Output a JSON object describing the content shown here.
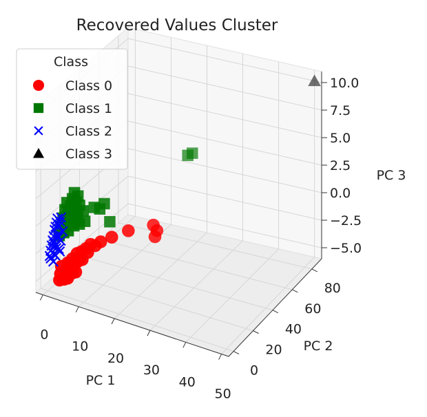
{
  "chart_data": {
    "type": "scatter",
    "projection": "3d",
    "title": "Recovered Values Cluster",
    "xlabel": "PC 1",
    "ylabel": "PC 2",
    "zlabel": "PC 3",
    "xlim": [
      -2,
      52
    ],
    "ylim": [
      -5,
      90
    ],
    "zlim": [
      -6,
      11
    ],
    "xticks": [
      "0",
      "10",
      "20",
      "30",
      "40",
      "50"
    ],
    "yticks": [
      "0",
      "20",
      "40",
      "60",
      "80"
    ],
    "zticks": [
      "−5.0",
      "−2.5",
      "0.0",
      "2.5",
      "5.0",
      "7.5",
      "10.0"
    ],
    "grid": true,
    "legend": {
      "title": "Class",
      "position": "upper-left"
    },
    "series": [
      {
        "name": "Class 0",
        "marker": "circle",
        "color": "#ff0000",
        "points": [
          [
            3,
            1,
            -4.8
          ],
          [
            4,
            1,
            -4.6
          ],
          [
            5,
            2,
            -4.5
          ],
          [
            3,
            2,
            -4.3
          ],
          [
            4,
            3,
            -4.4
          ],
          [
            5,
            1,
            -4.1
          ],
          [
            6,
            2,
            -3.9
          ],
          [
            4,
            4,
            -4.0
          ],
          [
            3,
            3,
            -3.7
          ],
          [
            6,
            4,
            -3.6
          ],
          [
            5,
            5,
            -3.4
          ],
          [
            7,
            3,
            -3.8
          ],
          [
            4,
            6,
            -3.5
          ],
          [
            6,
            6,
            -3.2
          ],
          [
            7,
            5,
            -3.0
          ],
          [
            5,
            7,
            -3.1
          ],
          [
            8,
            6,
            -2.8
          ],
          [
            6,
            8,
            -2.6
          ],
          [
            7,
            9,
            -2.4
          ],
          [
            9,
            8,
            -2.2
          ],
          [
            8,
            10,
            -2.1
          ],
          [
            10,
            12,
            -1.8
          ],
          [
            9,
            11,
            -1.7
          ],
          [
            11,
            14,
            -1.5
          ],
          [
            7,
            7,
            -2.9
          ],
          [
            5,
            3,
            -4.2
          ],
          [
            4,
            2,
            -4.7
          ],
          [
            6,
            3,
            -4.0
          ],
          [
            13,
            18,
            -1.2
          ],
          [
            16,
            24,
            -0.8
          ],
          [
            20,
            35,
            -0.8
          ],
          [
            21,
            35,
            -1.2
          ],
          [
            21,
            33,
            -1.6
          ]
        ]
      },
      {
        "name": "Class 1",
        "marker": "square",
        "color": "#007700",
        "points": [
          [
            1,
            8,
            -1.5
          ],
          [
            2,
            9,
            -1.2
          ],
          [
            1,
            10,
            -0.8
          ],
          [
            2,
            11,
            -0.5
          ],
          [
            1,
            12,
            -0.2
          ],
          [
            2,
            13,
            0.0
          ],
          [
            3,
            10,
            -1.0
          ],
          [
            2,
            14,
            0.3
          ],
          [
            3,
            12,
            -0.3
          ],
          [
            1,
            14,
            0.4
          ],
          [
            3,
            14,
            0.1
          ],
          [
            4,
            12,
            -0.6
          ],
          [
            2,
            16,
            0.7
          ],
          [
            3,
            16,
            0.5
          ],
          [
            1,
            16,
            0.9
          ],
          [
            4,
            14,
            -0.2
          ],
          [
            3,
            18,
            1.0
          ],
          [
            2,
            18,
            1.2
          ],
          [
            4,
            16,
            0.2
          ],
          [
            5,
            14,
            -0.5
          ],
          [
            3,
            20,
            1.4
          ],
          [
            4,
            18,
            0.8
          ],
          [
            2,
            20,
            1.6
          ],
          [
            5,
            18,
            0.4
          ],
          [
            6,
            16,
            -0.3
          ],
          [
            7,
            22,
            0.6
          ],
          [
            8,
            24,
            0.4
          ],
          [
            10,
            27,
            -0.8
          ],
          [
            9,
            25,
            0.9
          ],
          [
            22,
            63,
            3.4
          ],
          [
            23,
            64,
            3.6
          ]
        ]
      },
      {
        "name": "Class 2",
        "marker": "x",
        "color": "#0000ff",
        "points": [
          [
            0,
            2,
            -3.0
          ],
          [
            0,
            3,
            -2.6
          ],
          [
            1,
            3,
            -2.8
          ],
          [
            0,
            4,
            -2.2
          ],
          [
            1,
            4,
            -2.0
          ],
          [
            0,
            5,
            -1.8
          ],
          [
            1,
            5,
            -2.4
          ],
          [
            0,
            6,
            -1.5
          ],
          [
            1,
            6,
            -1.3
          ],
          [
            0,
            7,
            -1.0
          ],
          [
            1,
            7,
            -1.6
          ],
          [
            0,
            8,
            -0.8
          ],
          [
            1,
            8,
            -0.6
          ],
          [
            2,
            4,
            -2.3
          ],
          [
            2,
            6,
            -1.7
          ],
          [
            0,
            9,
            -0.5
          ],
          [
            1,
            9,
            -0.3
          ],
          [
            0,
            3,
            -3.3
          ],
          [
            1,
            2,
            -3.4
          ],
          [
            2,
            5,
            -2.6
          ],
          [
            0,
            10,
            -0.2
          ],
          [
            1,
            10,
            0.0
          ],
          [
            2,
            8,
            -1.0
          ],
          [
            0,
            6,
            -2.0
          ],
          [
            1,
            4,
            -3.0
          ]
        ]
      },
      {
        "name": "Class 3",
        "marker": "triangle",
        "color": "#000000",
        "points": [
          [
            50,
            90,
            10.0
          ]
        ]
      }
    ]
  }
}
